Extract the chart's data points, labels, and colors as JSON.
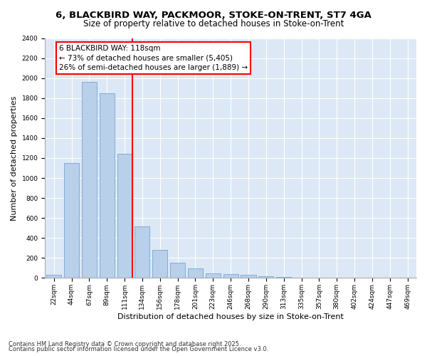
{
  "title1": "6, BLACKBIRD WAY, PACKMOOR, STOKE-ON-TRENT, ST7 4GA",
  "title2": "Size of property relative to detached houses in Stoke-on-Trent",
  "xlabel": "Distribution of detached houses by size in Stoke-on-Trent",
  "ylabel": "Number of detached properties",
  "categories": [
    "22sqm",
    "44sqm",
    "67sqm",
    "89sqm",
    "111sqm",
    "134sqm",
    "156sqm",
    "178sqm",
    "201sqm",
    "223sqm",
    "246sqm",
    "268sqm",
    "290sqm",
    "313sqm",
    "335sqm",
    "357sqm",
    "380sqm",
    "402sqm",
    "424sqm",
    "447sqm",
    "469sqm"
  ],
  "values": [
    30,
    1150,
    1960,
    1850,
    1240,
    515,
    280,
    155,
    95,
    48,
    38,
    35,
    18,
    8,
    4,
    3,
    3,
    2,
    2,
    2,
    2
  ],
  "bar_color": "#b8d0ea",
  "bar_edge_color": "#6699cc",
  "vline_color": "red",
  "annotation_text": "6 BLACKBIRD WAY: 118sqm\n← 73% of detached houses are smaller (5,405)\n26% of semi-detached houses are larger (1,889) →",
  "annotation_box_color": "white",
  "annotation_box_edge_color": "red",
  "ylim": [
    0,
    2400
  ],
  "yticks": [
    0,
    200,
    400,
    600,
    800,
    1000,
    1200,
    1400,
    1600,
    1800,
    2000,
    2200,
    2400
  ],
  "background_color": "#dce8f5",
  "footer1": "Contains HM Land Registry data © Crown copyright and database right 2025.",
  "footer2": "Contains public sector information licensed under the Open Government Licence v3.0.",
  "title_fontsize": 9.5,
  "subtitle_fontsize": 8.5,
  "axis_label_fontsize": 8,
  "tick_fontsize": 6.5,
  "annotation_fontsize": 7.5,
  "footer_fontsize": 6
}
